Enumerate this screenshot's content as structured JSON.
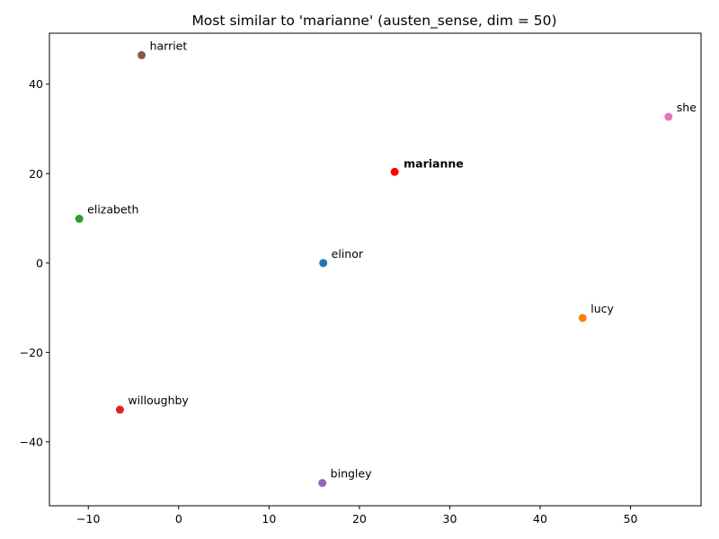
{
  "chart_data": {
    "type": "scatter",
    "title": "Most similar to 'marianne' (austen_sense, dim = 50)",
    "xlabel": "",
    "ylabel": "",
    "xlim": [
      -14.3,
      57.8
    ],
    "ylim": [
      -54.3,
      51.4
    ],
    "xticks": [
      -10,
      0,
      10,
      20,
      30,
      40,
      50
    ],
    "yticks": [
      -40,
      -20,
      0,
      20,
      40
    ],
    "xtick_labels": [
      "−10",
      "0",
      "10",
      "20",
      "30",
      "40",
      "50"
    ],
    "ytick_labels": [
      "−40",
      "−20",
      "0",
      "20",
      "40"
    ],
    "grid": false,
    "highlight": "marianne",
    "points": [
      {
        "label": "elinor",
        "x": 16.0,
        "y": 0.0,
        "color": "#1f77b4"
      },
      {
        "label": "lucy",
        "x": 44.7,
        "y": -12.3,
        "color": "#ff7f0e"
      },
      {
        "label": "elizabeth",
        "x": -11.0,
        "y": 9.9,
        "color": "#2ca02c"
      },
      {
        "label": "willoughby",
        "x": -6.5,
        "y": -32.8,
        "color": "#d62728"
      },
      {
        "label": "bingley",
        "x": 15.9,
        "y": -49.2,
        "color": "#9467bd"
      },
      {
        "label": "harriet",
        "x": -4.1,
        "y": 46.5,
        "color": "#8c564b"
      },
      {
        "label": "she",
        "x": 54.2,
        "y": 32.7,
        "color": "#e377c2"
      },
      {
        "label": "marianne",
        "x": 23.9,
        "y": 20.4,
        "color": "#ff0000"
      }
    ]
  }
}
